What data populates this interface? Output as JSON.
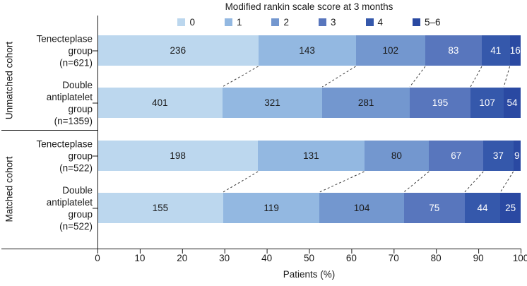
{
  "title": "Modified rankin scale score at 3 months",
  "xlabel": "Patients (%)",
  "chart_data": {
    "type": "bar",
    "stacked": true,
    "orientation": "horizontal",
    "title": "Modified rankin scale score at 3 months",
    "xlabel": "Patients (%)",
    "xlim": [
      0,
      100
    ],
    "xticks": [
      0,
      10,
      20,
      30,
      40,
      50,
      60,
      70,
      80,
      90,
      100
    ],
    "grid": false,
    "legend_position": "top",
    "legend": [
      {
        "label": "0",
        "color": "#bcd7ee"
      },
      {
        "label": "1",
        "color": "#93b8e1"
      },
      {
        "label": "2",
        "color": "#7397cf"
      },
      {
        "label": "3",
        "color": "#5876bd"
      },
      {
        "label": "4",
        "color": "#3558ab"
      },
      {
        "label": "5–6",
        "color": "#2a49a2"
      }
    ],
    "value_label_colors": [
      "#1a1a1a",
      "#1a1a1a",
      "#1a1a1a",
      "#ffffff",
      "#ffffff",
      "#ffffff"
    ],
    "cohorts": [
      {
        "label": "Unmatched cohort",
        "row_indexes": [
          0,
          1
        ]
      },
      {
        "label": "Matched cohort",
        "row_indexes": [
          2,
          3
        ]
      }
    ],
    "rows": [
      {
        "cohort": "Unmatched cohort",
        "label_lines": [
          "Tenecteplase",
          "group",
          "(n=621)"
        ],
        "n": 621,
        "values": [
          236,
          143,
          102,
          83,
          41,
          16
        ]
      },
      {
        "cohort": "Unmatched cohort",
        "label_lines": [
          "Double",
          "antiplatelet",
          "group",
          "(n=1359)"
        ],
        "n": 1359,
        "values": [
          401,
          321,
          281,
          195,
          107,
          54
        ]
      },
      {
        "cohort": "Matched cohort",
        "label_lines": [
          "Tenecteplase",
          "group",
          "(n=522)"
        ],
        "n": 522,
        "values": [
          198,
          131,
          80,
          67,
          37,
          9
        ]
      },
      {
        "cohort": "Matched cohort",
        "label_lines": [
          "Double",
          "antiplatelet",
          "group",
          "(n=522)"
        ],
        "n": 522,
        "values": [
          155,
          119,
          104,
          75,
          44,
          25
        ]
      }
    ],
    "connectors": "dashed lines join stacked-segment boundaries between the two bars of each cohort",
    "axis_color": "#1a1a1a"
  }
}
